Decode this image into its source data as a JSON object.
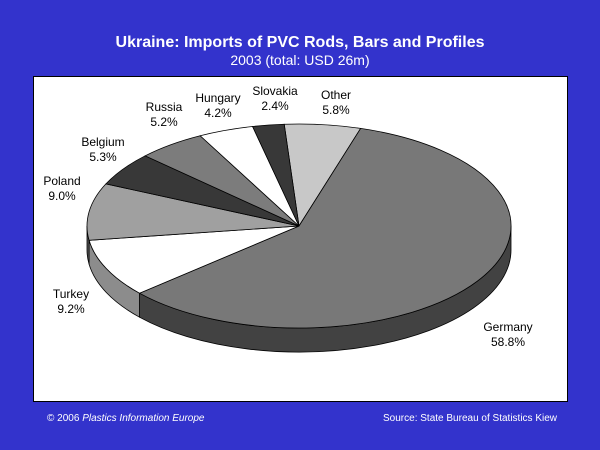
{
  "chart_data": {
    "type": "pie",
    "title": "Ukraine: Imports of PVC Rods, Bars and Profiles",
    "subtitle": "2003 (total: USD 26m)",
    "slices": [
      {
        "label": "Other",
        "percent": "5.8%",
        "value": 5.8,
        "color": "#c8c8c8"
      },
      {
        "label": "Germany",
        "percent": "58.8%",
        "value": 58.8,
        "color": "#787878"
      },
      {
        "label": "Turkey",
        "percent": "9.2%",
        "value": 9.2,
        "color": "#ffffff"
      },
      {
        "label": "Poland",
        "percent": "9.0%",
        "value": 9.0,
        "color": "#a0a0a0"
      },
      {
        "label": "Belgium",
        "percent": "5.3%",
        "value": 5.3,
        "color": "#383838"
      },
      {
        "label": "Russia",
        "percent": "5.2%",
        "value": 5.2,
        "color": "#7c7c7c"
      },
      {
        "label": "Hungary",
        "percent": "4.2%",
        "value": 4.2,
        "color": "#ffffff"
      },
      {
        "label": "Slovakia",
        "percent": "2.4%",
        "value": 2.4,
        "color": "#383838"
      }
    ]
  },
  "footer": {
    "copyright": "© 2006",
    "publisher": "Plastics Information Europe",
    "source": "Source: State Bureau of Statistics Kiew"
  }
}
